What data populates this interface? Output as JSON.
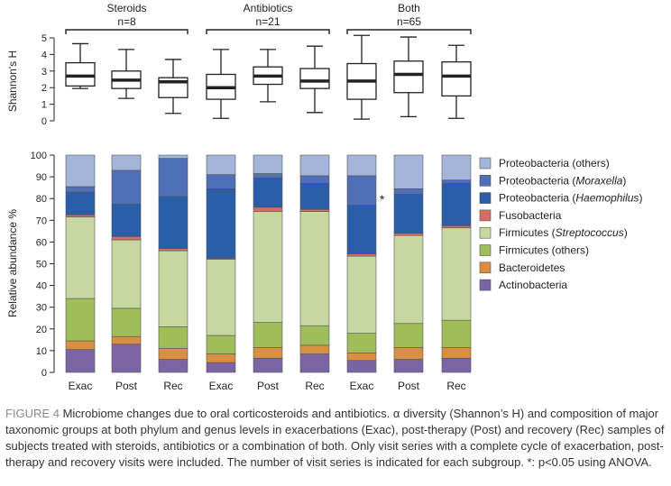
{
  "chart_data": [
    {
      "type": "boxplot",
      "ylabel": "Shannon's H",
      "ylim": [
        0,
        5
      ],
      "yticks": [
        0,
        1,
        2,
        3,
        4,
        5
      ],
      "groups": [
        {
          "name": "Steroids",
          "n_label": "n=8"
        },
        {
          "name": "Antibiotics",
          "n_label": "n=21"
        },
        {
          "name": "Both",
          "n_label": "n=65"
        }
      ],
      "categories": [
        "Exac",
        "Post",
        "Rec",
        "Exac",
        "Post",
        "Rec",
        "Exac",
        "Post",
        "Rec"
      ],
      "boxes": [
        {
          "min": 1.95,
          "q1": 2.1,
          "median": 2.7,
          "q3": 3.5,
          "max": 4.65
        },
        {
          "min": 1.35,
          "q1": 1.95,
          "median": 2.45,
          "q3": 3.0,
          "max": 4.3
        },
        {
          "min": 0.45,
          "q1": 1.4,
          "median": 2.35,
          "q3": 2.6,
          "max": 3.7
        },
        {
          "min": 0.15,
          "q1": 1.3,
          "median": 2.0,
          "q3": 2.8,
          "max": 4.3
        },
        {
          "min": 1.15,
          "q1": 2.2,
          "median": 2.7,
          "q3": 3.25,
          "max": 4.3
        },
        {
          "min": 0.5,
          "q1": 1.95,
          "median": 2.4,
          "q3": 3.15,
          "max": 4.5
        },
        {
          "min": 0.1,
          "q1": 1.3,
          "median": 2.4,
          "q3": 3.45,
          "max": 5.15
        },
        {
          "min": 0.25,
          "q1": 1.7,
          "median": 2.8,
          "q3": 3.6,
          "max": 5.05
        },
        {
          "min": 0.15,
          "q1": 1.5,
          "median": 2.7,
          "q3": 3.55,
          "max": 4.55
        }
      ]
    },
    {
      "type": "stacked-bar",
      "ylabel": "Relative abundance %",
      "ylim": [
        0,
        100
      ],
      "yticks": [
        0,
        10,
        20,
        30,
        40,
        50,
        60,
        70,
        80,
        90,
        100
      ],
      "categories": [
        "Exac",
        "Post",
        "Rec",
        "Exac",
        "Post",
        "Rec",
        "Exac",
        "Post",
        "Rec"
      ],
      "annotation": {
        "text": "*",
        "category_index": 6
      },
      "series": [
        {
          "name": "Actinobacteria",
          "italic": "",
          "suffix": "",
          "color": "#7a64a3",
          "values": [
            10.5,
            13,
            6,
            4.5,
            6.5,
            8.5,
            5.5,
            6,
            6.5
          ]
        },
        {
          "name": "Bacteroidetes",
          "italic": "",
          "suffix": "",
          "color": "#d88f42",
          "values": [
            4,
            3.5,
            5,
            4,
            5,
            4,
            3.5,
            5.5,
            5
          ]
        },
        {
          "name": "Firmicutes (others)",
          "italic": "",
          "suffix": "",
          "color": "#9fbd58",
          "values": [
            19.5,
            13,
            10,
            8.5,
            11.5,
            9,
            9,
            11,
            12.5
          ]
        },
        {
          "name": "Firmicutes (",
          "italic": "Streptococcus",
          "suffix": ")",
          "color": "#c6d8a0",
          "values": [
            37.5,
            31.5,
            35,
            35,
            51,
            52.5,
            35.5,
            40.5,
            42.5
          ]
        },
        {
          "name": "Fusobacteria",
          "italic": "",
          "suffix": "",
          "color": "#d66c64",
          "values": [
            1,
            1.5,
            1,
            0.5,
            2,
            1,
            1,
            1,
            1
          ]
        },
        {
          "name": "Proteobacteria (",
          "italic": "Haemophilus",
          "suffix": ")",
          "color": "#2a5ea9",
          "values": [
            10.5,
            15,
            24,
            32,
            13.5,
            12,
            22.5,
            18,
            19.5
          ]
        },
        {
          "name": "Proteobacteria (",
          "italic": "Moraxella",
          "suffix": ")",
          "color": "#4f6fb7",
          "values": [
            2.5,
            15.5,
            17.5,
            6.5,
            2,
            3.5,
            13.5,
            2.5,
            1.5
          ]
        },
        {
          "name": "Proteobacteria (others)",
          "italic": "",
          "suffix": "",
          "color": "#a5b5da",
          "values": [
            14.5,
            7,
            1.5,
            9,
            8.5,
            9.5,
            9.5,
            15.5,
            11.5
          ]
        }
      ]
    }
  ],
  "caption": {
    "label": "FIGURE 4",
    "text": " Microbiome changes due to oral corticosteroids and antibiotics. α diversity (Shannon’s H) and composition of major taxonomic groups at both phylum and genus levels in exacerbations (Exac), post-therapy (Post) and recovery (Rec) samples of subjects treated with steroids, antibiotics or a combination of both. Only visit series with a complete cycle of exacerbation, post-therapy and recovery visits were included. The number of visit series is indicated for each subgroup. *: p<0.05 using ANOVA."
  }
}
